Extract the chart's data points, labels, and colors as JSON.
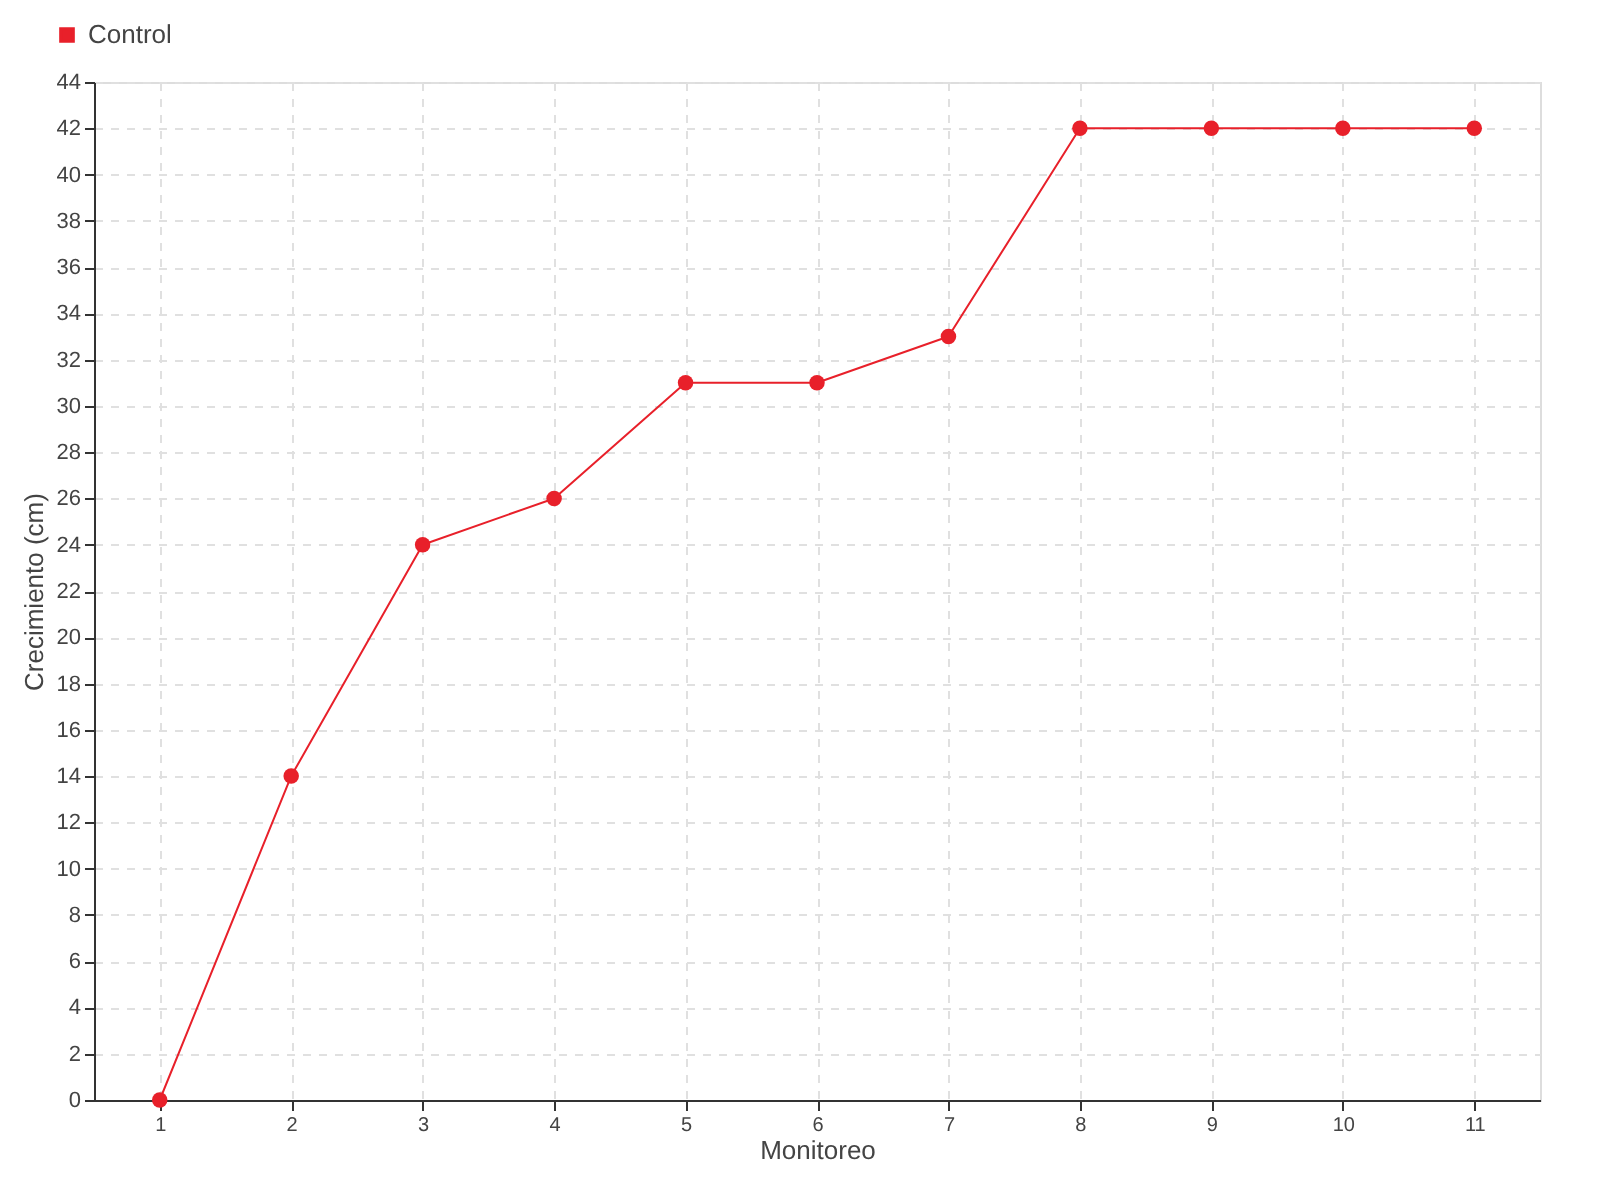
{
  "chart_data": {
    "type": "line",
    "xlabel": "Monitoreo",
    "ylabel": "Crecimiento (cm)",
    "categories": [
      "1",
      "2",
      "3",
      "4",
      "5",
      "6",
      "7",
      "8",
      "9",
      "10",
      "11"
    ],
    "series": [
      {
        "name": "Control",
        "color": "#e8202a",
        "values": [
          0,
          14,
          24,
          26,
          31,
          31,
          33,
          42,
          42,
          42,
          42
        ]
      }
    ],
    "ylim": [
      0,
      44
    ],
    "yticks": [
      0,
      2,
      4,
      6,
      8,
      10,
      12,
      14,
      16,
      18,
      20,
      22,
      24,
      26,
      28,
      30,
      32,
      34,
      36,
      38,
      40,
      42,
      44
    ],
    "grid": true,
    "legend": "top left",
    "marker": "circle",
    "line_style": "solid"
  }
}
